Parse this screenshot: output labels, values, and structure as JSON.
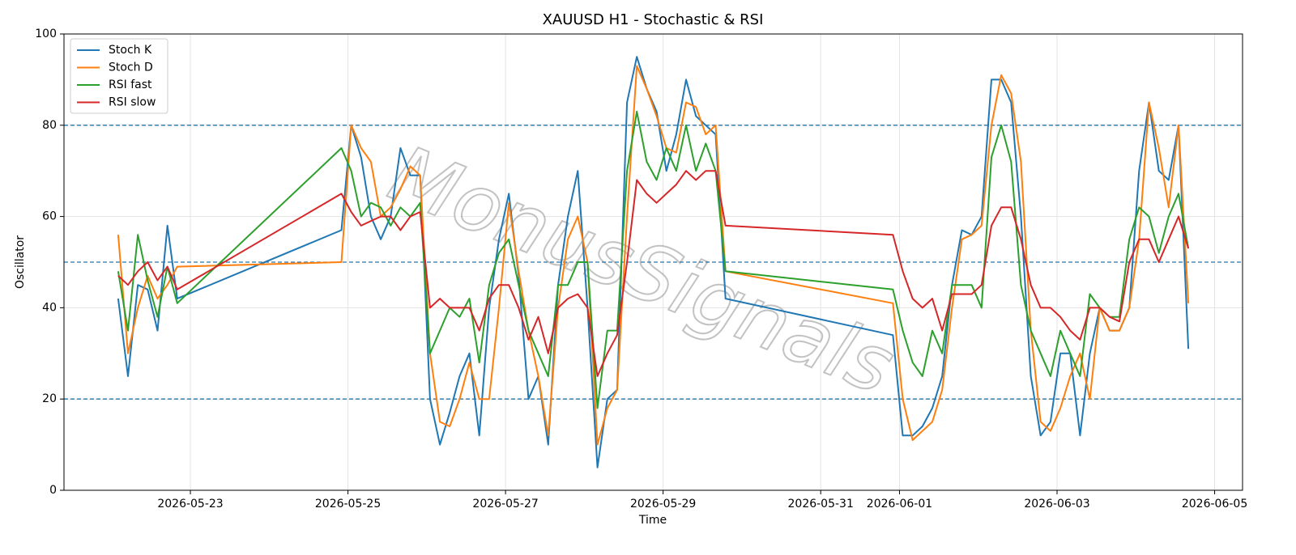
{
  "chart_data": {
    "type": "line",
    "title": "XAUUSD H1 - Stochastic & RSI",
    "xlabel": "Time",
    "ylabel": "Oscillator",
    "watermark": "MonusSignals",
    "x": [
      "2026-05-22 02:00",
      "2026-05-22 05:00",
      "2026-05-22 08:00",
      "2026-05-22 11:00",
      "2026-05-22 14:00",
      "2026-05-22 17:00",
      "2026-05-22 20:00",
      "2026-05-24 22:00",
      "2026-05-25 01:00",
      "2026-05-25 04:00",
      "2026-05-25 07:00",
      "2026-05-25 10:00",
      "2026-05-25 13:00",
      "2026-05-25 16:00",
      "2026-05-25 19:00",
      "2026-05-25 22:00",
      "2026-05-26 01:00",
      "2026-05-26 04:00",
      "2026-05-26 07:00",
      "2026-05-26 10:00",
      "2026-05-26 13:00",
      "2026-05-26 16:00",
      "2026-05-26 19:00",
      "2026-05-26 22:00",
      "2026-05-27 01:00",
      "2026-05-27 04:00",
      "2026-05-27 07:00",
      "2026-05-27 10:00",
      "2026-05-27 13:00",
      "2026-05-27 16:00",
      "2026-05-27 19:00",
      "2026-05-27 22:00",
      "2026-05-28 01:00",
      "2026-05-28 04:00",
      "2026-05-28 07:00",
      "2026-05-28 10:00",
      "2026-05-28 13:00",
      "2026-05-28 16:00",
      "2026-05-28 19:00",
      "2026-05-28 22:00",
      "2026-05-29 01:00",
      "2026-05-29 04:00",
      "2026-05-29 07:00",
      "2026-05-29 10:00",
      "2026-05-29 13:00",
      "2026-05-29 16:00",
      "2026-05-29 19:00",
      "2026-05-31 22:00",
      "2026-06-01 01:00",
      "2026-06-01 04:00",
      "2026-06-01 07:00",
      "2026-06-01 10:00",
      "2026-06-01 13:00",
      "2026-06-01 16:00",
      "2026-06-01 19:00",
      "2026-06-01 22:00",
      "2026-06-02 01:00",
      "2026-06-02 04:00",
      "2026-06-02 07:00",
      "2026-06-02 10:00",
      "2026-06-02 13:00",
      "2026-06-02 16:00",
      "2026-06-02 19:00",
      "2026-06-02 22:00",
      "2026-06-03 01:00",
      "2026-06-03 04:00",
      "2026-06-03 07:00",
      "2026-06-03 10:00",
      "2026-06-03 13:00",
      "2026-06-03 16:00",
      "2026-06-03 19:00",
      "2026-06-03 22:00",
      "2026-06-04 01:00",
      "2026-06-04 04:00",
      "2026-06-04 07:00",
      "2026-06-04 10:00",
      "2026-06-04 13:00",
      "2026-06-04 16:00"
    ],
    "series": [
      {
        "name": "Stoch K",
        "color": "#1f77b4",
        "values": [
          42,
          25,
          45,
          44,
          35,
          58,
          42,
          57,
          80,
          73,
          60,
          55,
          60,
          75,
          69,
          69,
          20,
          10,
          17,
          25,
          30,
          12,
          40,
          55,
          65,
          47,
          20,
          25,
          10,
          45,
          60,
          70,
          40,
          5,
          20,
          22,
          85,
          95,
          88,
          83,
          70,
          78,
          90,
          82,
          80,
          78,
          42,
          34,
          12,
          12,
          14,
          18,
          25,
          45,
          57,
          56,
          60,
          90,
          90,
          85,
          60,
          25,
          12,
          15,
          30,
          30,
          12,
          30,
          40,
          35,
          35,
          40,
          70,
          85,
          70,
          68,
          80,
          31
        ]
      },
      {
        "name": "Stoch D",
        "color": "#ff7f0e",
        "values": [
          56,
          30,
          40,
          47,
          42,
          45,
          49,
          50,
          80,
          75,
          72,
          60,
          62,
          66,
          71,
          69,
          30,
          15,
          14,
          20,
          28,
          20,
          20,
          40,
          63,
          48,
          35,
          25,
          12,
          40,
          55,
          60,
          50,
          10,
          18,
          22,
          60,
          93,
          88,
          82,
          75,
          74,
          85,
          84,
          78,
          80,
          48,
          41,
          20,
          11,
          13,
          15,
          22,
          40,
          55,
          56,
          58,
          80,
          91,
          87,
          72,
          35,
          15,
          13,
          18,
          25,
          30,
          20,
          40,
          35,
          35,
          40,
          55,
          85,
          75,
          62,
          80,
          41
        ]
      },
      {
        "name": "RSI fast",
        "color": "#2ca02c",
        "values": [
          48,
          35,
          56,
          46,
          38,
          49,
          41,
          75,
          70,
          60,
          63,
          62,
          58,
          62,
          60,
          63,
          30,
          35,
          40,
          38,
          42,
          28,
          45,
          52,
          55,
          45,
          35,
          30,
          25,
          45,
          45,
          50,
          50,
          18,
          35,
          35,
          70,
          83,
          72,
          68,
          75,
          70,
          80,
          70,
          76,
          70,
          48,
          44,
          35,
          28,
          25,
          35,
          30,
          45,
          45,
          45,
          40,
          73,
          80,
          72,
          45,
          35,
          30,
          25,
          35,
          30,
          25,
          43,
          40,
          38,
          38,
          55,
          62,
          60,
          52,
          60,
          65,
          53
        ]
      },
      {
        "name": "RSI slow",
        "color": "#d62728",
        "values": [
          47,
          45,
          48,
          50,
          46,
          49,
          44,
          65,
          61,
          58,
          59,
          60,
          60,
          57,
          60,
          61,
          40,
          42,
          40,
          40,
          40,
          35,
          42,
          45,
          45,
          40,
          33,
          38,
          30,
          40,
          42,
          43,
          40,
          25,
          30,
          34,
          50,
          68,
          65,
          63,
          65,
          67,
          70,
          68,
          70,
          70,
          58,
          56,
          48,
          42,
          40,
          42,
          35,
          43,
          43,
          43,
          45,
          58,
          62,
          62,
          55,
          45,
          40,
          40,
          38,
          35,
          33,
          40,
          40,
          38,
          37,
          50,
          55,
          55,
          50,
          55,
          60,
          53
        ]
      }
    ],
    "hlines": [
      80,
      50,
      20
    ],
    "hline_color": "#1f77b4",
    "xlim": [
      "2026-05-21 09:30",
      "2026-06-05 08:30"
    ],
    "xticks": [
      "2026-05-23",
      "2026-05-25",
      "2026-05-27",
      "2026-05-29",
      "2026-05-31",
      "2026-06-01",
      "2026-06-03",
      "2026-06-05"
    ],
    "ylim": [
      0,
      100
    ],
    "yticks": [
      0,
      20,
      40,
      60,
      80,
      100
    ],
    "grid": true,
    "legend": "upper left"
  }
}
